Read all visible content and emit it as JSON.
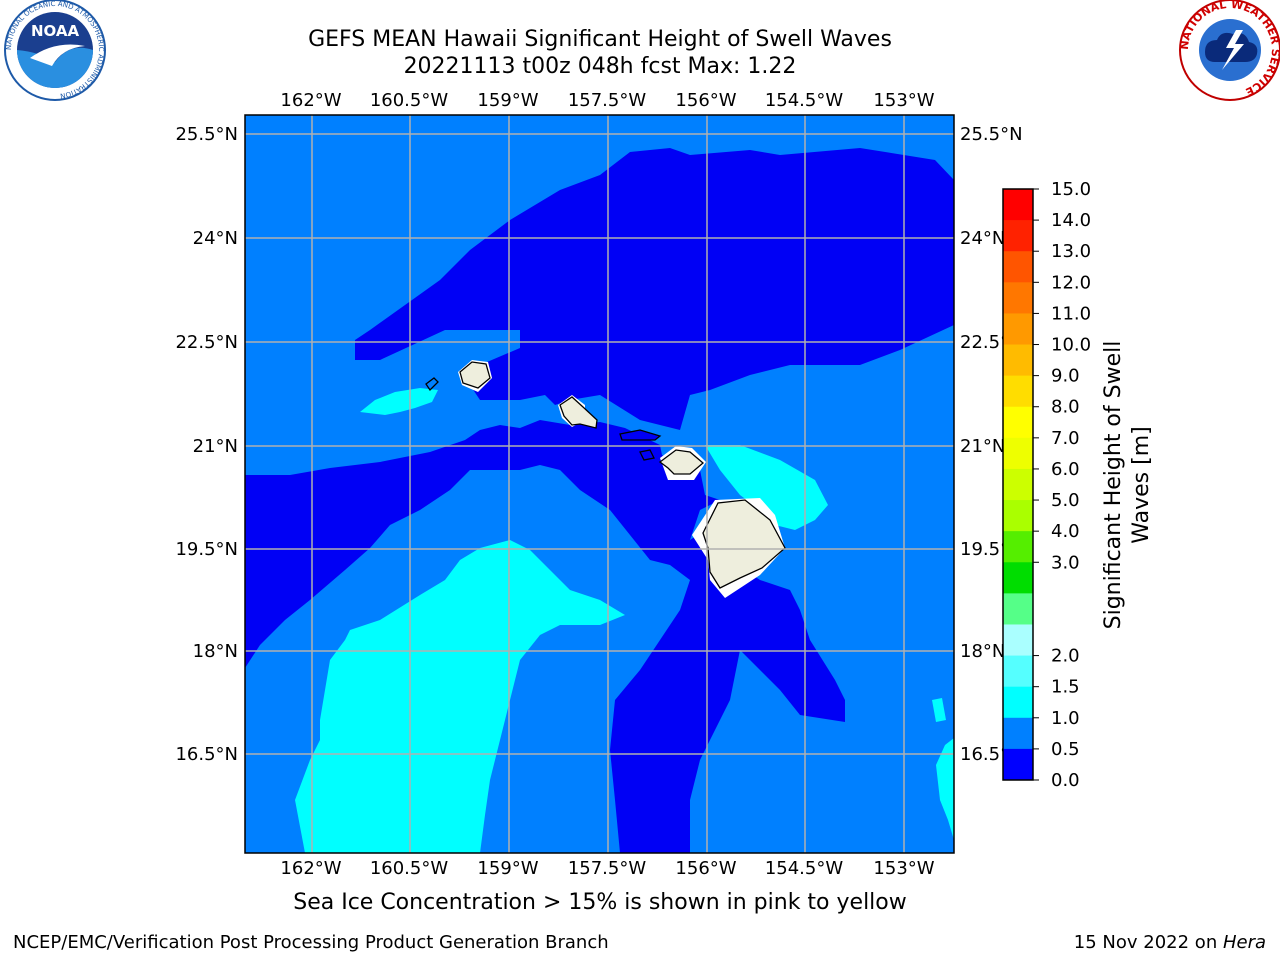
{
  "header": {
    "title_line1": "GEFS MEAN Hawaii Significant Height of Swell Waves",
    "title_line2": "20221113 t00z 048h fcst   Max: 1.22"
  },
  "logos": {
    "left": {
      "text": "NOAA",
      "ring_text": "NATIONAL OCEANIC AND ATMOSPHERIC ADMINISTRATION"
    },
    "right": {
      "ring_text": "NATIONAL WEATHER SERVICE"
    }
  },
  "map": {
    "lon_ticks": [
      "162°W",
      "160.5°W",
      "159°W",
      "157.5°W",
      "156°W",
      "154.5°W",
      "153°W"
    ],
    "lat_ticks": [
      "25.5°N",
      "24°N",
      "22.5°N",
      "21°N",
      "19.5°N",
      "18°N",
      "16.5°N"
    ],
    "colors": {
      "water_0_05": "#0000f5",
      "water_05_1": "#0080ff",
      "water_1_15": "#00ffff",
      "water_15_2": "#3cf5ff",
      "land": "#eeeedd",
      "grid": "#b0b0b0"
    }
  },
  "colorbar": {
    "label": "Significant Height of Swell Waves [m]",
    "ticks": [
      "15.0",
      "14.0",
      "13.0",
      "12.0",
      "11.0",
      "10.0",
      "9.0",
      "8.0",
      "7.0",
      "6.0",
      "5.0",
      "4.0",
      "3.0",
      "2.0",
      "1.5",
      "1.0",
      "0.5",
      "0.0"
    ],
    "colors": [
      "#ff0000",
      "#ff2200",
      "#ff5500",
      "#ff7700",
      "#ff9900",
      "#ffbb00",
      "#ffdd00",
      "#ffff00",
      "#eeff00",
      "#ccff00",
      "#aaff00",
      "#55ee00",
      "#00dd00",
      "#55ff88",
      "#aaffff",
      "#55ffff",
      "#00ffff",
      "#0080ff",
      "#0000ff"
    ]
  },
  "footer": {
    "subtitle": "Sea Ice Concentration > 15% is shown in pink to yellow",
    "left": "NCEP/EMC/Verification Post Processing Product Generation Branch",
    "right_date": "15 Nov 2022 on ",
    "right_host": "Hera"
  }
}
